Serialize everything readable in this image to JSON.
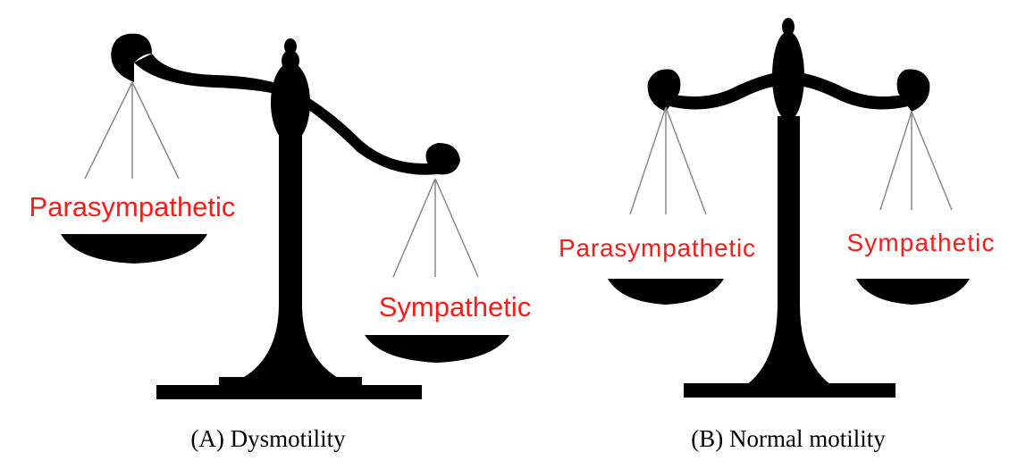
{
  "panels": [
    {
      "caption": "(A) Dysmotility",
      "left_label": "Parasympathetic",
      "right_label": "Sympathetic"
    },
    {
      "caption": "(B) Normal motility",
      "left_label": "Parasympathetic",
      "right_label": "Sympathetic"
    }
  ]
}
